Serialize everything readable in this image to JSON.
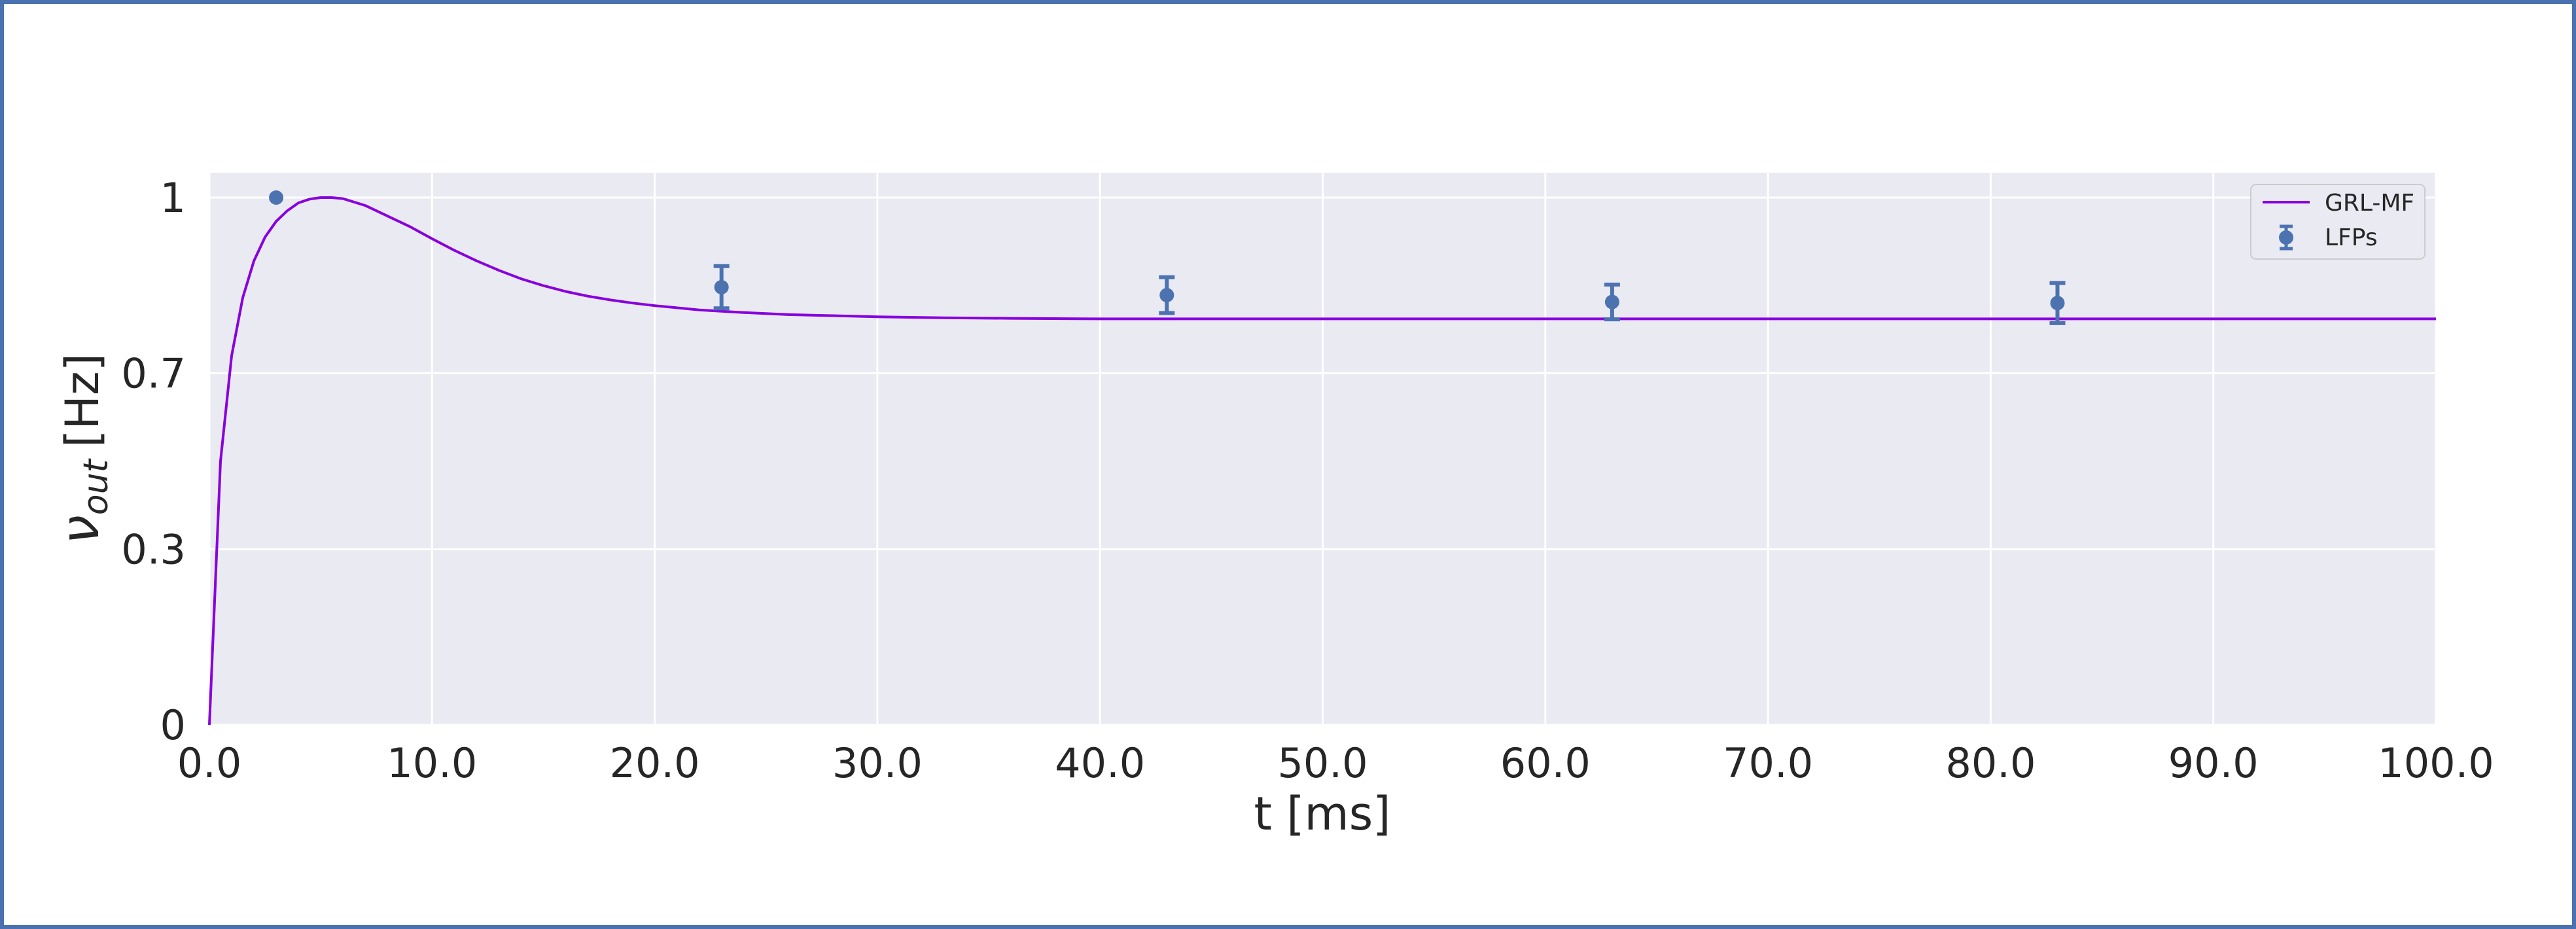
{
  "chart_data": {
    "type": "line",
    "title": "",
    "xlabel": "t [ms]",
    "ylabel_symbol": "ν",
    "ylabel_subscript": "out",
    "ylabel_unit": "[Hz]",
    "xlim": [
      0,
      100
    ],
    "ylim": [
      0,
      1.0
    ],
    "x_ticks": [
      0,
      10,
      20,
      30,
      40,
      50,
      60,
      70,
      80,
      90,
      100
    ],
    "x_tick_labels": [
      "0.0",
      "10.0",
      "20.0",
      "30.0",
      "40.0",
      "50.0",
      "60.0",
      "70.0",
      "80.0",
      "90.0",
      "100.0"
    ],
    "y_ticks": [
      0,
      0.333,
      0.667,
      1.0
    ],
    "y_tick_labels": [
      "0",
      "0.3",
      "0.7",
      "1"
    ],
    "grid": true,
    "legend_position": "top-right",
    "colors": {
      "line": "#8800dd",
      "points": "#4c72b0",
      "plot_bg": "#eaeaf2",
      "grid": "#ffffff"
    },
    "series": [
      {
        "name": "GRL-MF",
        "kind": "line",
        "x": [
          0,
          0.5,
          1,
          1.5,
          2,
          2.5,
          3,
          3.5,
          4,
          4.5,
          5,
          5.5,
          6,
          7,
          8,
          9,
          10,
          11,
          12,
          13,
          14,
          15,
          16,
          17,
          18,
          19,
          20,
          22,
          24,
          26,
          28,
          30,
          33,
          36,
          40,
          45,
          50,
          60,
          70,
          80,
          90,
          100
        ],
        "y": [
          0,
          0.5,
          0.7,
          0.81,
          0.88,
          0.925,
          0.955,
          0.975,
          0.99,
          0.997,
          1.0,
          1.0,
          0.998,
          0.985,
          0.965,
          0.945,
          0.922,
          0.9,
          0.88,
          0.862,
          0.846,
          0.833,
          0.822,
          0.813,
          0.806,
          0.8,
          0.795,
          0.787,
          0.782,
          0.778,
          0.776,
          0.774,
          0.772,
          0.771,
          0.77,
          0.77,
          0.77,
          0.77,
          0.77,
          0.77,
          0.77,
          0.77
        ]
      },
      {
        "name": "LFPs",
        "kind": "errorbar",
        "x": [
          3,
          23,
          43,
          63,
          83
        ],
        "y": [
          1.0,
          0.83,
          0.815,
          0.802,
          0.8
        ],
        "yerr": [
          0.0,
          0.04,
          0.034,
          0.033,
          0.038
        ]
      }
    ]
  }
}
